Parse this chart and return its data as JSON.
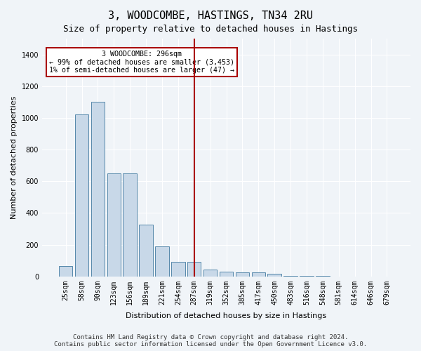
{
  "title": "3, WOODCOMBE, HASTINGS, TN34 2RU",
  "subtitle": "Size of property relative to detached houses in Hastings",
  "xlabel": "Distribution of detached houses by size in Hastings",
  "ylabel": "Number of detached properties",
  "bar_color": "#c8d8e8",
  "bar_edge_color": "#5588aa",
  "categories": [
    "25sqm",
    "58sqm",
    "90sqm",
    "123sqm",
    "156sqm",
    "189sqm",
    "221sqm",
    "254sqm",
    "287sqm",
    "319sqm",
    "352sqm",
    "385sqm",
    "417sqm",
    "450sqm",
    "483sqm",
    "516sqm",
    "548sqm",
    "581sqm",
    "614sqm",
    "646sqm",
    "679sqm"
  ],
  "values": [
    65,
    1020,
    1100,
    650,
    650,
    325,
    190,
    90,
    90,
    45,
    30,
    25,
    25,
    15,
    5,
    3,
    2,
    1,
    1,
    0,
    0
  ],
  "ylim": [
    0,
    1500
  ],
  "yticks": [
    0,
    200,
    400,
    600,
    800,
    1000,
    1200,
    1400
  ],
  "vline_x": 8,
  "vline_color": "#aa0000",
  "annotation_text": "3 WOODCOMBE: 296sqm\n← 99% of detached houses are smaller (3,453)\n1% of semi-detached houses are larger (47) →",
  "annotation_box_color": "#aa0000",
  "footer_text": "Contains HM Land Registry data © Crown copyright and database right 2024.\nContains public sector information licensed under the Open Government Licence v3.0.",
  "bg_color": "#f0f4f8",
  "grid_color": "#ffffff",
  "title_fontsize": 11,
  "subtitle_fontsize": 9,
  "axis_label_fontsize": 8,
  "tick_fontsize": 7,
  "footer_fontsize": 6.5
}
